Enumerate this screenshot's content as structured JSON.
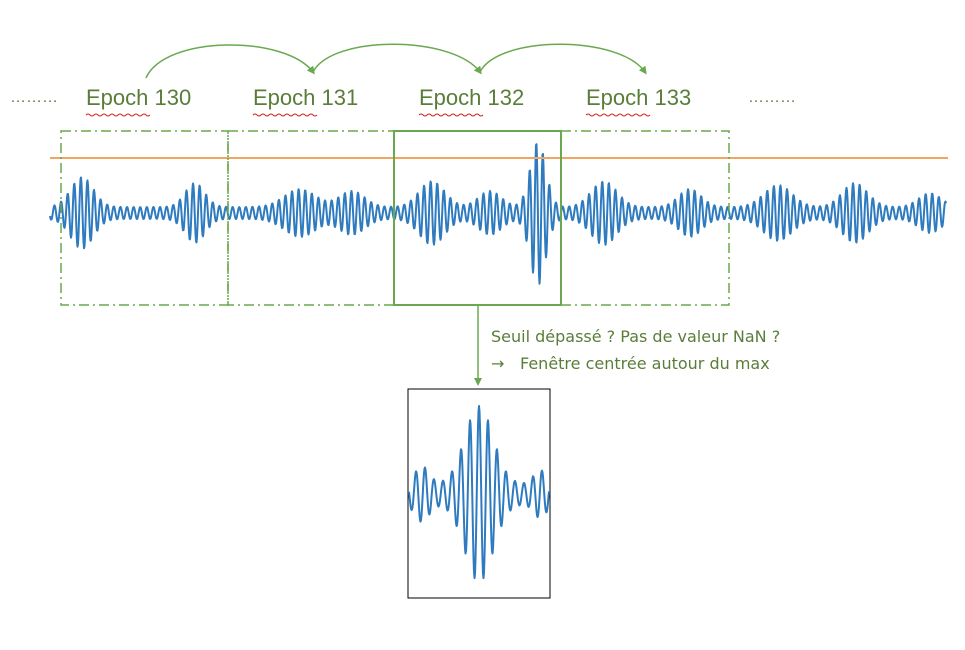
{
  "colors": {
    "epoch_text": "#5a7d3a",
    "frame": "#6aa84f",
    "threshold": "#f4a460",
    "signal": "#2f7bbf",
    "underline": "#d02020",
    "output_box": "#000000"
  },
  "epochs": [
    {
      "label": "Epoch 130"
    },
    {
      "label": "Epoch 131"
    },
    {
      "label": "Epoch 132"
    },
    {
      "label": "Epoch 133"
    }
  ],
  "ellipsis_left": "………",
  "ellipsis_right": "………",
  "annotation": {
    "line1": "Seuil dépassé ? Pas de valeur NaN ?",
    "arrow_glyph": "→",
    "line2": "Fenêtre centrée autour du max"
  }
}
